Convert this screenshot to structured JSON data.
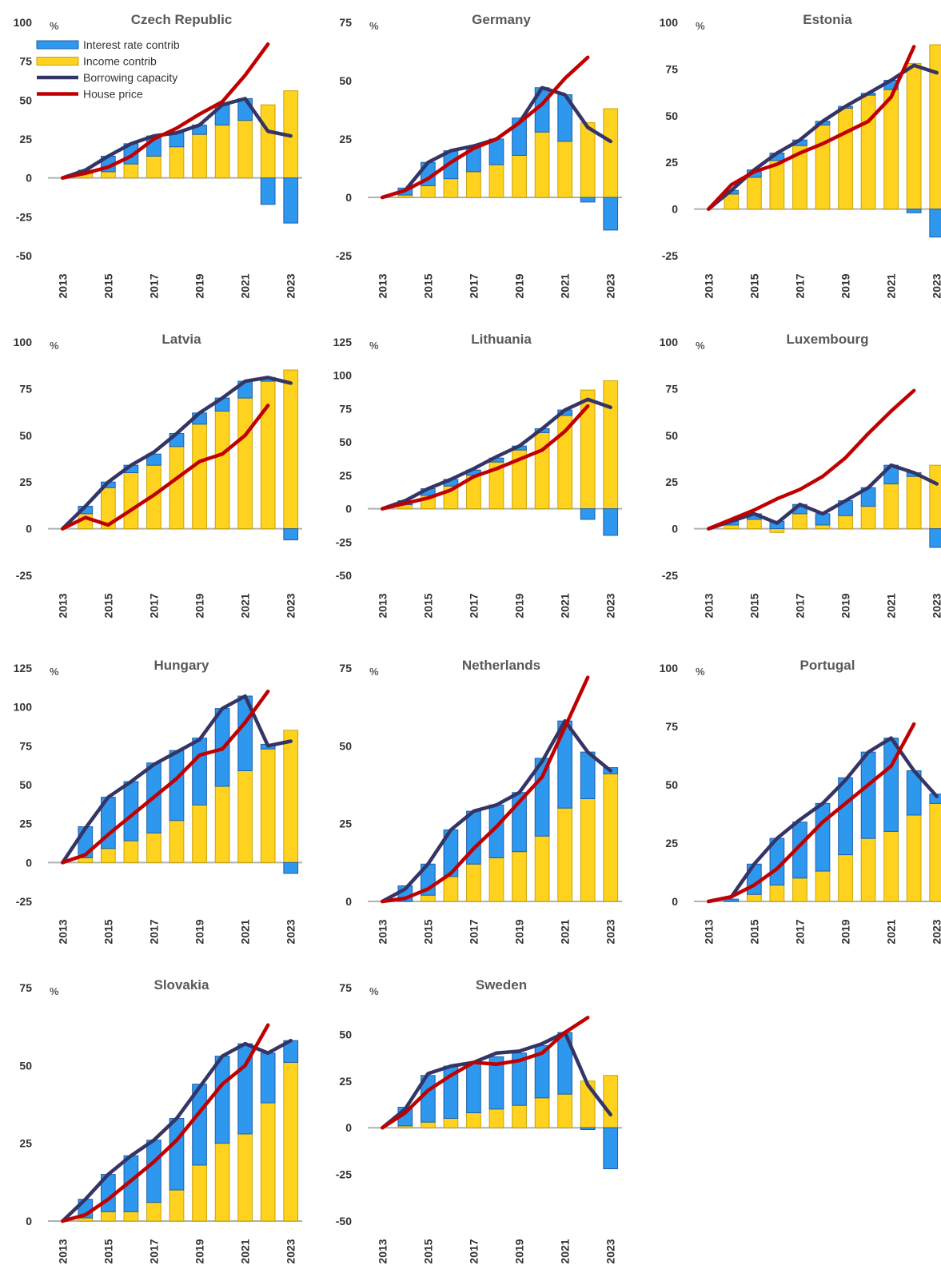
{
  "colors": {
    "interest": "#2E97EE",
    "interest_stroke": "#1F5FA8",
    "income": "#FFD21F",
    "income_stroke": "#C9A400",
    "borrowing": "#343466",
    "house": "#C00000",
    "axis": "#B0B0B0"
  },
  "chart_data": [
    {
      "type": "bar",
      "title": "Czech Republic",
      "unit": "%",
      "yticks": [
        100,
        75,
        50,
        25,
        0,
        -25,
        -50
      ],
      "ylim": [
        -50,
        100
      ],
      "xticks": [
        "2013",
        "2015",
        "2017",
        "2019",
        "2021",
        "2023"
      ],
      "x": [
        2013,
        2014,
        2015,
        2016,
        2017,
        2018,
        2019,
        2020,
        2021,
        2022,
        2023
      ],
      "legend": [
        "Interest rate contrib",
        "Income contrib",
        "Borrowing capacity",
        "House price"
      ],
      "series": [
        {
          "name": "Interest rate contrib",
          "values": [
            0,
            2,
            10,
            13,
            13,
            9,
            6,
            13,
            14,
            -17,
            -29
          ]
        },
        {
          "name": "Income contrib",
          "values": [
            0,
            3,
            4,
            9,
            14,
            20,
            28,
            34,
            37,
            47,
            56
          ]
        },
        {
          "name": "Borrowing capacity",
          "values": [
            0,
            5,
            14,
            22,
            27,
            29,
            34,
            47,
            51,
            30,
            27
          ]
        },
        {
          "name": "House price",
          "values": [
            0,
            3,
            7,
            14,
            25,
            32,
            41,
            49,
            66,
            86,
            null
          ]
        }
      ]
    },
    {
      "type": "bar",
      "title": "Germany",
      "unit": "%",
      "yticks": [
        75,
        50,
        25,
        0,
        -25
      ],
      "ylim": [
        -25,
        75
      ],
      "xticks": [
        "2013",
        "2015",
        "2017",
        "2019",
        "2021",
        "2023"
      ],
      "x": [
        2013,
        2014,
        2015,
        2016,
        2017,
        2018,
        2019,
        2020,
        2021,
        2022,
        2023
      ],
      "series": [
        {
          "name": "Interest rate contrib",
          "values": [
            0,
            3,
            10,
            12,
            11,
            11,
            16,
            19,
            20,
            -2,
            -14
          ]
        },
        {
          "name": "Income contrib",
          "values": [
            0,
            1,
            5,
            8,
            11,
            14,
            18,
            28,
            24,
            32,
            38
          ]
        },
        {
          "name": "Borrowing capacity",
          "values": [
            0,
            3,
            15,
            20,
            22,
            25,
            32,
            47,
            44,
            30,
            24
          ]
        },
        {
          "name": "House price",
          "values": [
            0,
            3,
            8,
            15,
            21,
            25,
            32,
            40,
            51,
            60,
            null
          ]
        }
      ]
    },
    {
      "type": "bar",
      "title": "Estonia",
      "unit": "%",
      "yticks": [
        100,
        75,
        50,
        25,
        0,
        -25
      ],
      "ylim": [
        -25,
        100
      ],
      "xticks": [
        "2013",
        "2015",
        "2017",
        "2019",
        "2021",
        "2023"
      ],
      "x": [
        2013,
        2014,
        2015,
        2016,
        2017,
        2018,
        2019,
        2020,
        2021,
        2022,
        2023
      ],
      "series": [
        {
          "name": "Interest rate contrib",
          "values": [
            0,
            2,
            4,
            4,
            3,
            2,
            1,
            1,
            5,
            -2,
            -15
          ]
        },
        {
          "name": "Income contrib",
          "values": [
            0,
            8,
            17,
            26,
            34,
            45,
            54,
            61,
            64,
            78,
            88
          ]
        },
        {
          "name": "Borrowing capacity",
          "values": [
            0,
            10,
            21,
            30,
            37,
            47,
            55,
            62,
            69,
            77,
            73
          ]
        },
        {
          "name": "House price",
          "values": [
            0,
            13,
            20,
            24,
            30,
            35,
            41,
            47,
            60,
            87,
            null
          ]
        }
      ]
    },
    {
      "type": "bar",
      "title": "Latvia",
      "unit": "%",
      "yticks": [
        100,
        75,
        50,
        25,
        0,
        -25
      ],
      "ylim": [
        -25,
        100
      ],
      "xticks": [
        "2013",
        "2015",
        "2017",
        "2019",
        "2021",
        "2023"
      ],
      "x": [
        2013,
        2014,
        2015,
        2016,
        2017,
        2018,
        2019,
        2020,
        2021,
        2022,
        2023
      ],
      "series": [
        {
          "name": "Interest rate contrib",
          "values": [
            0,
            4,
            3,
            4,
            6,
            7,
            6,
            7,
            9,
            2,
            -6
          ]
        },
        {
          "name": "Income contrib",
          "values": [
            0,
            8,
            22,
            30,
            34,
            44,
            56,
            63,
            70,
            79,
            85
          ]
        },
        {
          "name": "Borrowing capacity",
          "values": [
            0,
            12,
            25,
            34,
            41,
            51,
            62,
            70,
            79,
            81,
            78
          ]
        },
        {
          "name": "House price",
          "values": [
            0,
            6,
            2,
            10,
            18,
            27,
            36,
            40,
            50,
            66,
            null
          ]
        }
      ]
    },
    {
      "type": "bar",
      "title": "Lithuania",
      "unit": "%",
      "yticks": [
        125,
        100,
        75,
        50,
        25,
        0,
        -25,
        -50
      ],
      "ylim": [
        -50,
        125
      ],
      "xticks": [
        "2013",
        "2015",
        "2017",
        "2019",
        "2021",
        "2023"
      ],
      "x": [
        2013,
        2014,
        2015,
        2016,
        2017,
        2018,
        2019,
        2020,
        2021,
        2022,
        2023
      ],
      "series": [
        {
          "name": "Interest rate contrib",
          "values": [
            0,
            3,
            5,
            5,
            4,
            3,
            3,
            3,
            4,
            -8,
            -20
          ]
        },
        {
          "name": "Income contrib",
          "values": [
            0,
            3,
            10,
            17,
            25,
            35,
            44,
            57,
            70,
            89,
            96
          ]
        },
        {
          "name": "Borrowing capacity",
          "values": [
            0,
            6,
            15,
            22,
            30,
            39,
            47,
            60,
            74,
            82,
            76
          ]
        },
        {
          "name": "House price",
          "values": [
            0,
            4,
            8,
            14,
            24,
            30,
            37,
            44,
            58,
            77,
            null
          ]
        }
      ]
    },
    {
      "type": "bar",
      "title": "Luxembourg",
      "unit": "%",
      "yticks": [
        100,
        75,
        50,
        25,
        0,
        -25
      ],
      "ylim": [
        -25,
        100
      ],
      "xticks": [
        "2013",
        "2015",
        "2017",
        "2019",
        "2021",
        "2023"
      ],
      "x": [
        2013,
        2014,
        2015,
        2016,
        2017,
        2018,
        2019,
        2020,
        2021,
        2022,
        2023
      ],
      "series": [
        {
          "name": "Interest rate contrib",
          "values": [
            0,
            2,
            3,
            4,
            5,
            6,
            8,
            10,
            10,
            2,
            -10
          ]
        },
        {
          "name": "Income contrib",
          "values": [
            0,
            2,
            5,
            -2,
            8,
            2,
            7,
            12,
            24,
            28,
            34
          ]
        },
        {
          "name": "Borrowing capacity",
          "values": [
            0,
            4,
            8,
            3,
            13,
            8,
            15,
            22,
            34,
            30,
            24
          ]
        },
        {
          "name": "House price",
          "values": [
            0,
            5,
            10,
            16,
            21,
            28,
            38,
            51,
            63,
            74,
            null
          ]
        }
      ]
    },
    {
      "type": "bar",
      "title": "Hungary",
      "unit": "%",
      "yticks": [
        125,
        100,
        75,
        50,
        25,
        0,
        -25
      ],
      "ylim": [
        -25,
        125
      ],
      "xticks": [
        "2013",
        "2015",
        "2017",
        "2019",
        "2021",
        "2023"
      ],
      "x": [
        2013,
        2014,
        2015,
        2016,
        2017,
        2018,
        2019,
        2020,
        2021,
        2022,
        2023
      ],
      "series": [
        {
          "name": "Interest rate contrib",
          "values": [
            0,
            20,
            33,
            38,
            45,
            45,
            43,
            50,
            48,
            3,
            -7
          ]
        },
        {
          "name": "Income contrib",
          "values": [
            0,
            3,
            9,
            14,
            19,
            27,
            37,
            49,
            59,
            73,
            85
          ]
        },
        {
          "name": "Borrowing capacity",
          "values": [
            0,
            22,
            42,
            52,
            63,
            71,
            79,
            99,
            107,
            75,
            78
          ]
        },
        {
          "name": "House price",
          "values": [
            0,
            5,
            18,
            30,
            42,
            54,
            69,
            73,
            90,
            110,
            null
          ]
        }
      ]
    },
    {
      "type": "bar",
      "title": "Netherlands",
      "unit": "%",
      "yticks": [
        75,
        50,
        25,
        0
      ],
      "ylim": [
        0,
        75
      ],
      "xticks": [
        "2013",
        "2015",
        "2017",
        "2019",
        "2021",
        "2023"
      ],
      "x": [
        2013,
        2014,
        2015,
        2016,
        2017,
        2018,
        2019,
        2020,
        2021,
        2022,
        2023
      ],
      "series": [
        {
          "name": "Interest rate contrib",
          "values": [
            0,
            5,
            10,
            15,
            17,
            17,
            19,
            25,
            28,
            15,
            2
          ]
        },
        {
          "name": "Income contrib",
          "values": [
            0,
            0,
            2,
            8,
            12,
            14,
            16,
            21,
            30,
            33,
            41
          ]
        },
        {
          "name": "Borrowing capacity",
          "values": [
            0,
            4,
            12,
            23,
            29,
            31,
            35,
            45,
            58,
            48,
            42
          ]
        },
        {
          "name": "House price",
          "values": [
            0,
            1,
            4,
            9,
            17,
            24,
            32,
            40,
            56,
            72,
            null
          ]
        }
      ]
    },
    {
      "type": "bar",
      "title": "Portugal",
      "unit": "%",
      "yticks": [
        100,
        75,
        50,
        25,
        0
      ],
      "ylim": [
        0,
        100
      ],
      "xticks": [
        "2013",
        "2015",
        "2017",
        "2019",
        "2021",
        "2023"
      ],
      "x": [
        2013,
        2014,
        2015,
        2016,
        2017,
        2018,
        2019,
        2020,
        2021,
        2022,
        2023
      ],
      "series": [
        {
          "name": "Interest rate contrib",
          "values": [
            0,
            1,
            13,
            20,
            24,
            29,
            33,
            37,
            40,
            19,
            4
          ]
        },
        {
          "name": "Income contrib",
          "values": [
            0,
            0,
            3,
            7,
            10,
            13,
            20,
            27,
            30,
            37,
            42
          ]
        },
        {
          "name": "Borrowing capacity",
          "values": [
            0,
            2,
            16,
            27,
            35,
            42,
            52,
            64,
            70,
            56,
            45
          ]
        },
        {
          "name": "House price",
          "values": [
            0,
            2,
            7,
            14,
            24,
            34,
            42,
            50,
            58,
            76,
            null
          ]
        }
      ]
    },
    {
      "type": "bar",
      "title": "Slovakia",
      "unit": "%",
      "yticks": [
        75,
        50,
        25,
        0
      ],
      "ylim": [
        0,
        75
      ],
      "xticks": [
        "2013",
        "2015",
        "2017",
        "2019",
        "2021",
        "2023"
      ],
      "x": [
        2013,
        2014,
        2015,
        2016,
        2017,
        2018,
        2019,
        2020,
        2021,
        2022,
        2023
      ],
      "series": [
        {
          "name": "Interest rate contrib",
          "values": [
            0,
            6,
            12,
            18,
            20,
            23,
            26,
            28,
            29,
            16,
            7
          ]
        },
        {
          "name": "Income contrib",
          "values": [
            0,
            1,
            3,
            3,
            6,
            10,
            18,
            25,
            28,
            38,
            51
          ]
        },
        {
          "name": "Borrowing capacity",
          "values": [
            0,
            7,
            15,
            21,
            26,
            33,
            43,
            53,
            57,
            54,
            58
          ]
        },
        {
          "name": "House price",
          "values": [
            0,
            2,
            7,
            13,
            19,
            26,
            35,
            44,
            50,
            63,
            null
          ]
        }
      ]
    },
    {
      "type": "bar",
      "title": "Sweden",
      "unit": "%",
      "yticks": [
        75,
        50,
        25,
        0,
        -25,
        -50
      ],
      "ylim": [
        -50,
        75
      ],
      "xticks": [
        "2013",
        "2015",
        "2017",
        "2019",
        "2021",
        "2023"
      ],
      "x": [
        2013,
        2014,
        2015,
        2016,
        2017,
        2018,
        2019,
        2020,
        2021,
        2022,
        2023
      ],
      "series": [
        {
          "name": "Interest rate contrib",
          "values": [
            0,
            10,
            25,
            28,
            27,
            28,
            28,
            28,
            33,
            -1,
            -22
          ]
        },
        {
          "name": "Income contrib",
          "values": [
            0,
            1,
            3,
            5,
            8,
            10,
            12,
            16,
            18,
            25,
            28
          ]
        },
        {
          "name": "Borrowing capacity",
          "values": [
            0,
            10,
            29,
            33,
            35,
            40,
            41,
            45,
            51,
            23,
            7
          ]
        },
        {
          "name": "House price",
          "values": [
            0,
            8,
            20,
            28,
            35,
            34,
            36,
            40,
            51,
            59,
            null
          ]
        }
      ]
    }
  ]
}
